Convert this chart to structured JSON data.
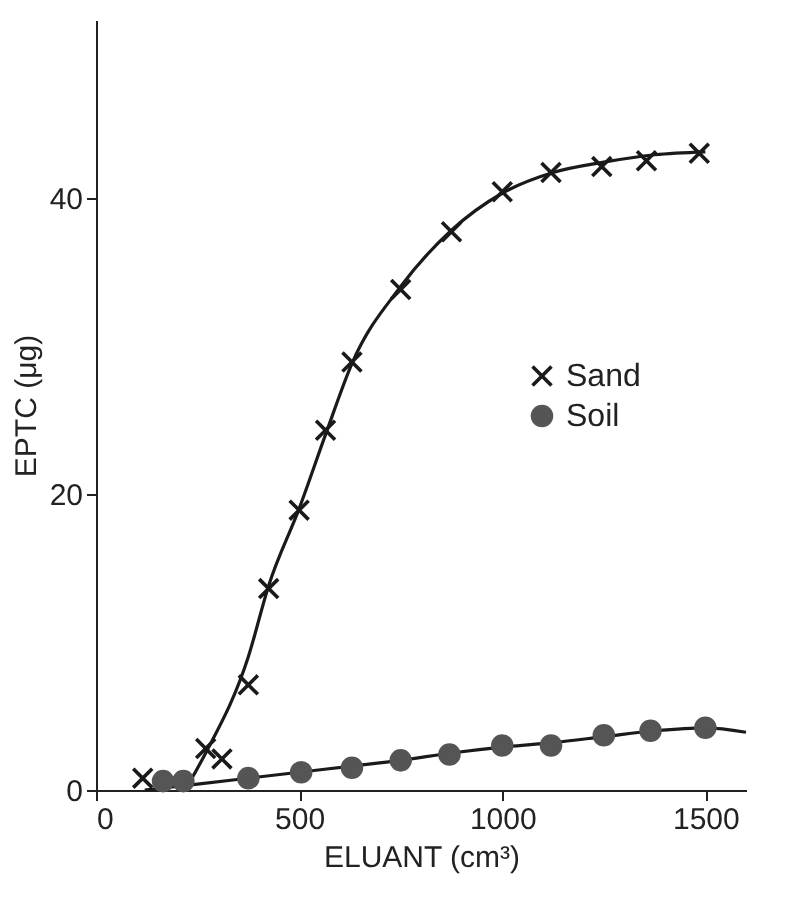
{
  "chart_data": {
    "type": "scatter",
    "xlabel": "ELUANT (cm³)",
    "ylabel": "EPTC (μg)",
    "xlim": [
      0,
      1600
    ],
    "xticks": [
      0,
      500,
      1000,
      1500
    ],
    "ylim": [
      0,
      52
    ],
    "yticks": [
      0,
      20,
      40
    ],
    "grid": false,
    "legend": "right",
    "series": [
      {
        "name": "Sand",
        "marker": "cross",
        "color": "#1a1a1a",
        "x": [
          115,
          270,
          310,
          375,
          425,
          500,
          565,
          630,
          750,
          875,
          1000,
          1120,
          1245,
          1355,
          1485
        ],
        "values": [
          0.8,
          2.8,
          2.1,
          7.1,
          13.6,
          18.9,
          24.3,
          28.9,
          33.8,
          37.7,
          40.4,
          41.7,
          42.1,
          42.5,
          43.0
        ]
      },
      {
        "name": "Soil",
        "marker": "circle",
        "color": "#555555",
        "x": [
          165,
          215,
          375,
          505,
          630,
          750,
          870,
          1000,
          1120,
          1250,
          1365,
          1500
        ],
        "values": [
          0.6,
          0.6,
          0.8,
          1.2,
          1.5,
          2.0,
          2.4,
          3.0,
          3.0,
          3.7,
          4.0,
          4.2
        ]
      },
      {
        "type": "line",
        "color": "#1a1a1a",
        "x": [
          230,
          270,
          375,
          425,
          500,
          565,
          630,
          750,
          875,
          1000,
          1125,
          1250,
          1375,
          1500
        ],
        "values": [
          0.5,
          2.5,
          9,
          13.8,
          19,
          24,
          28.8,
          34,
          37.8,
          40.3,
          41.7,
          42.4,
          42.9,
          43.1
        ]
      },
      {
        "type": "line",
        "color": "#1a1a1a",
        "x": [
          120,
          250,
          375,
          500,
          625,
          750,
          875,
          1000,
          1125,
          1250,
          1375,
          1500,
          1600
        ],
        "values": [
          0,
          0.4,
          0.8,
          1.2,
          1.6,
          2.0,
          2.5,
          2.9,
          3.2,
          3.6,
          4.0,
          4.2,
          3.9
        ]
      }
    ]
  }
}
